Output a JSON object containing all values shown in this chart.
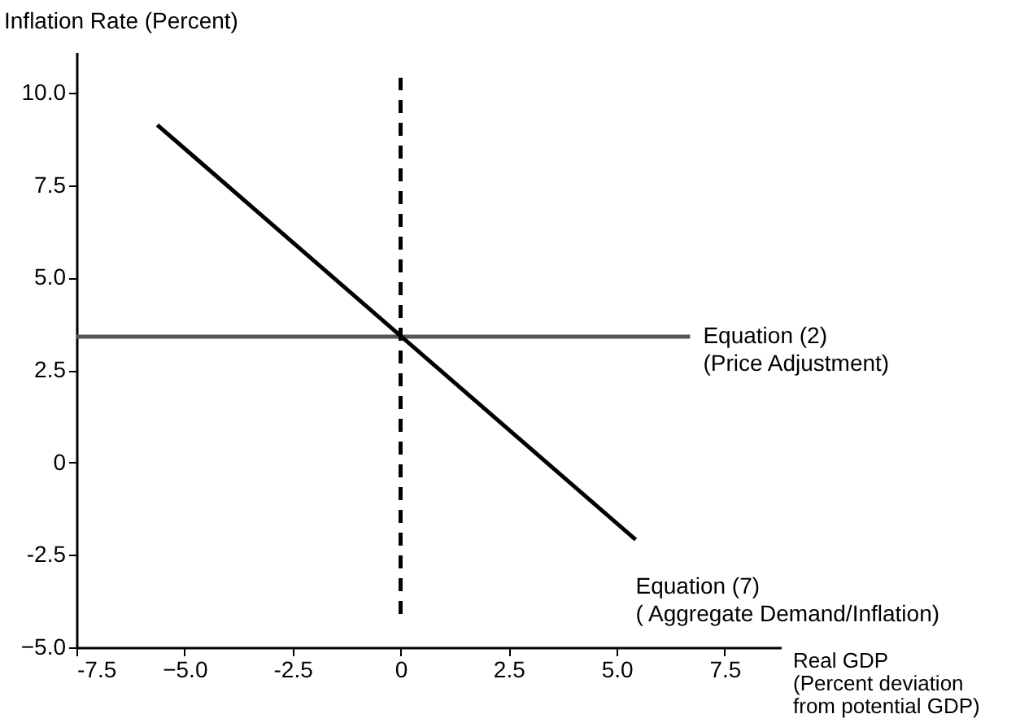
{
  "chart_data": {
    "type": "line",
    "xlabel": "Real GDP\n(Percent deviation\nfrom potential GDP)",
    "ylabel": "Inflation Rate (Percent)",
    "xlim": [
      -7.5,
      8.8
    ],
    "ylim": [
      -5,
      11.1
    ],
    "xticks": [
      -7.5,
      {
        "value": -5,
        "label": "−5.0"
      },
      -2.5,
      0,
      2.5,
      {
        "value": 5,
        "label": "5.0"
      },
      7.5
    ],
    "yticks": [
      {
        "value": -5,
        "label": "−5.0"
      },
      -2.5,
      0,
      2.5,
      {
        "value": 5,
        "label": "5.0"
      },
      7.5,
      {
        "value": 10,
        "label": "10.0"
      }
    ],
    "series": [
      {
        "x": [
          -7.5,
          6.7
        ],
        "values": [
          3.4,
          3.4
        ],
        "color": "#555555",
        "line_style": "solid"
      },
      {
        "x": [
          -5.63,
          5.44
        ],
        "values": [
          9.13,
          -2.09
        ],
        "color": "#000000",
        "line_style": "solid"
      },
      {
        "x": [
          0,
          0
        ],
        "values": [
          -4.1,
          10.4
        ],
        "color": "#000000",
        "line_style": "dashed"
      }
    ],
    "annotations": [
      {
        "text": "Equation (2)\n(Price Adjustment)",
        "x": 6.7,
        "y": 3.4
      },
      {
        "text": "Equation (7)\n( Aggregate Demand/Inflation)",
        "x": 5.44,
        "y": -2.09
      }
    ],
    "grid": false,
    "marker": "none"
  }
}
